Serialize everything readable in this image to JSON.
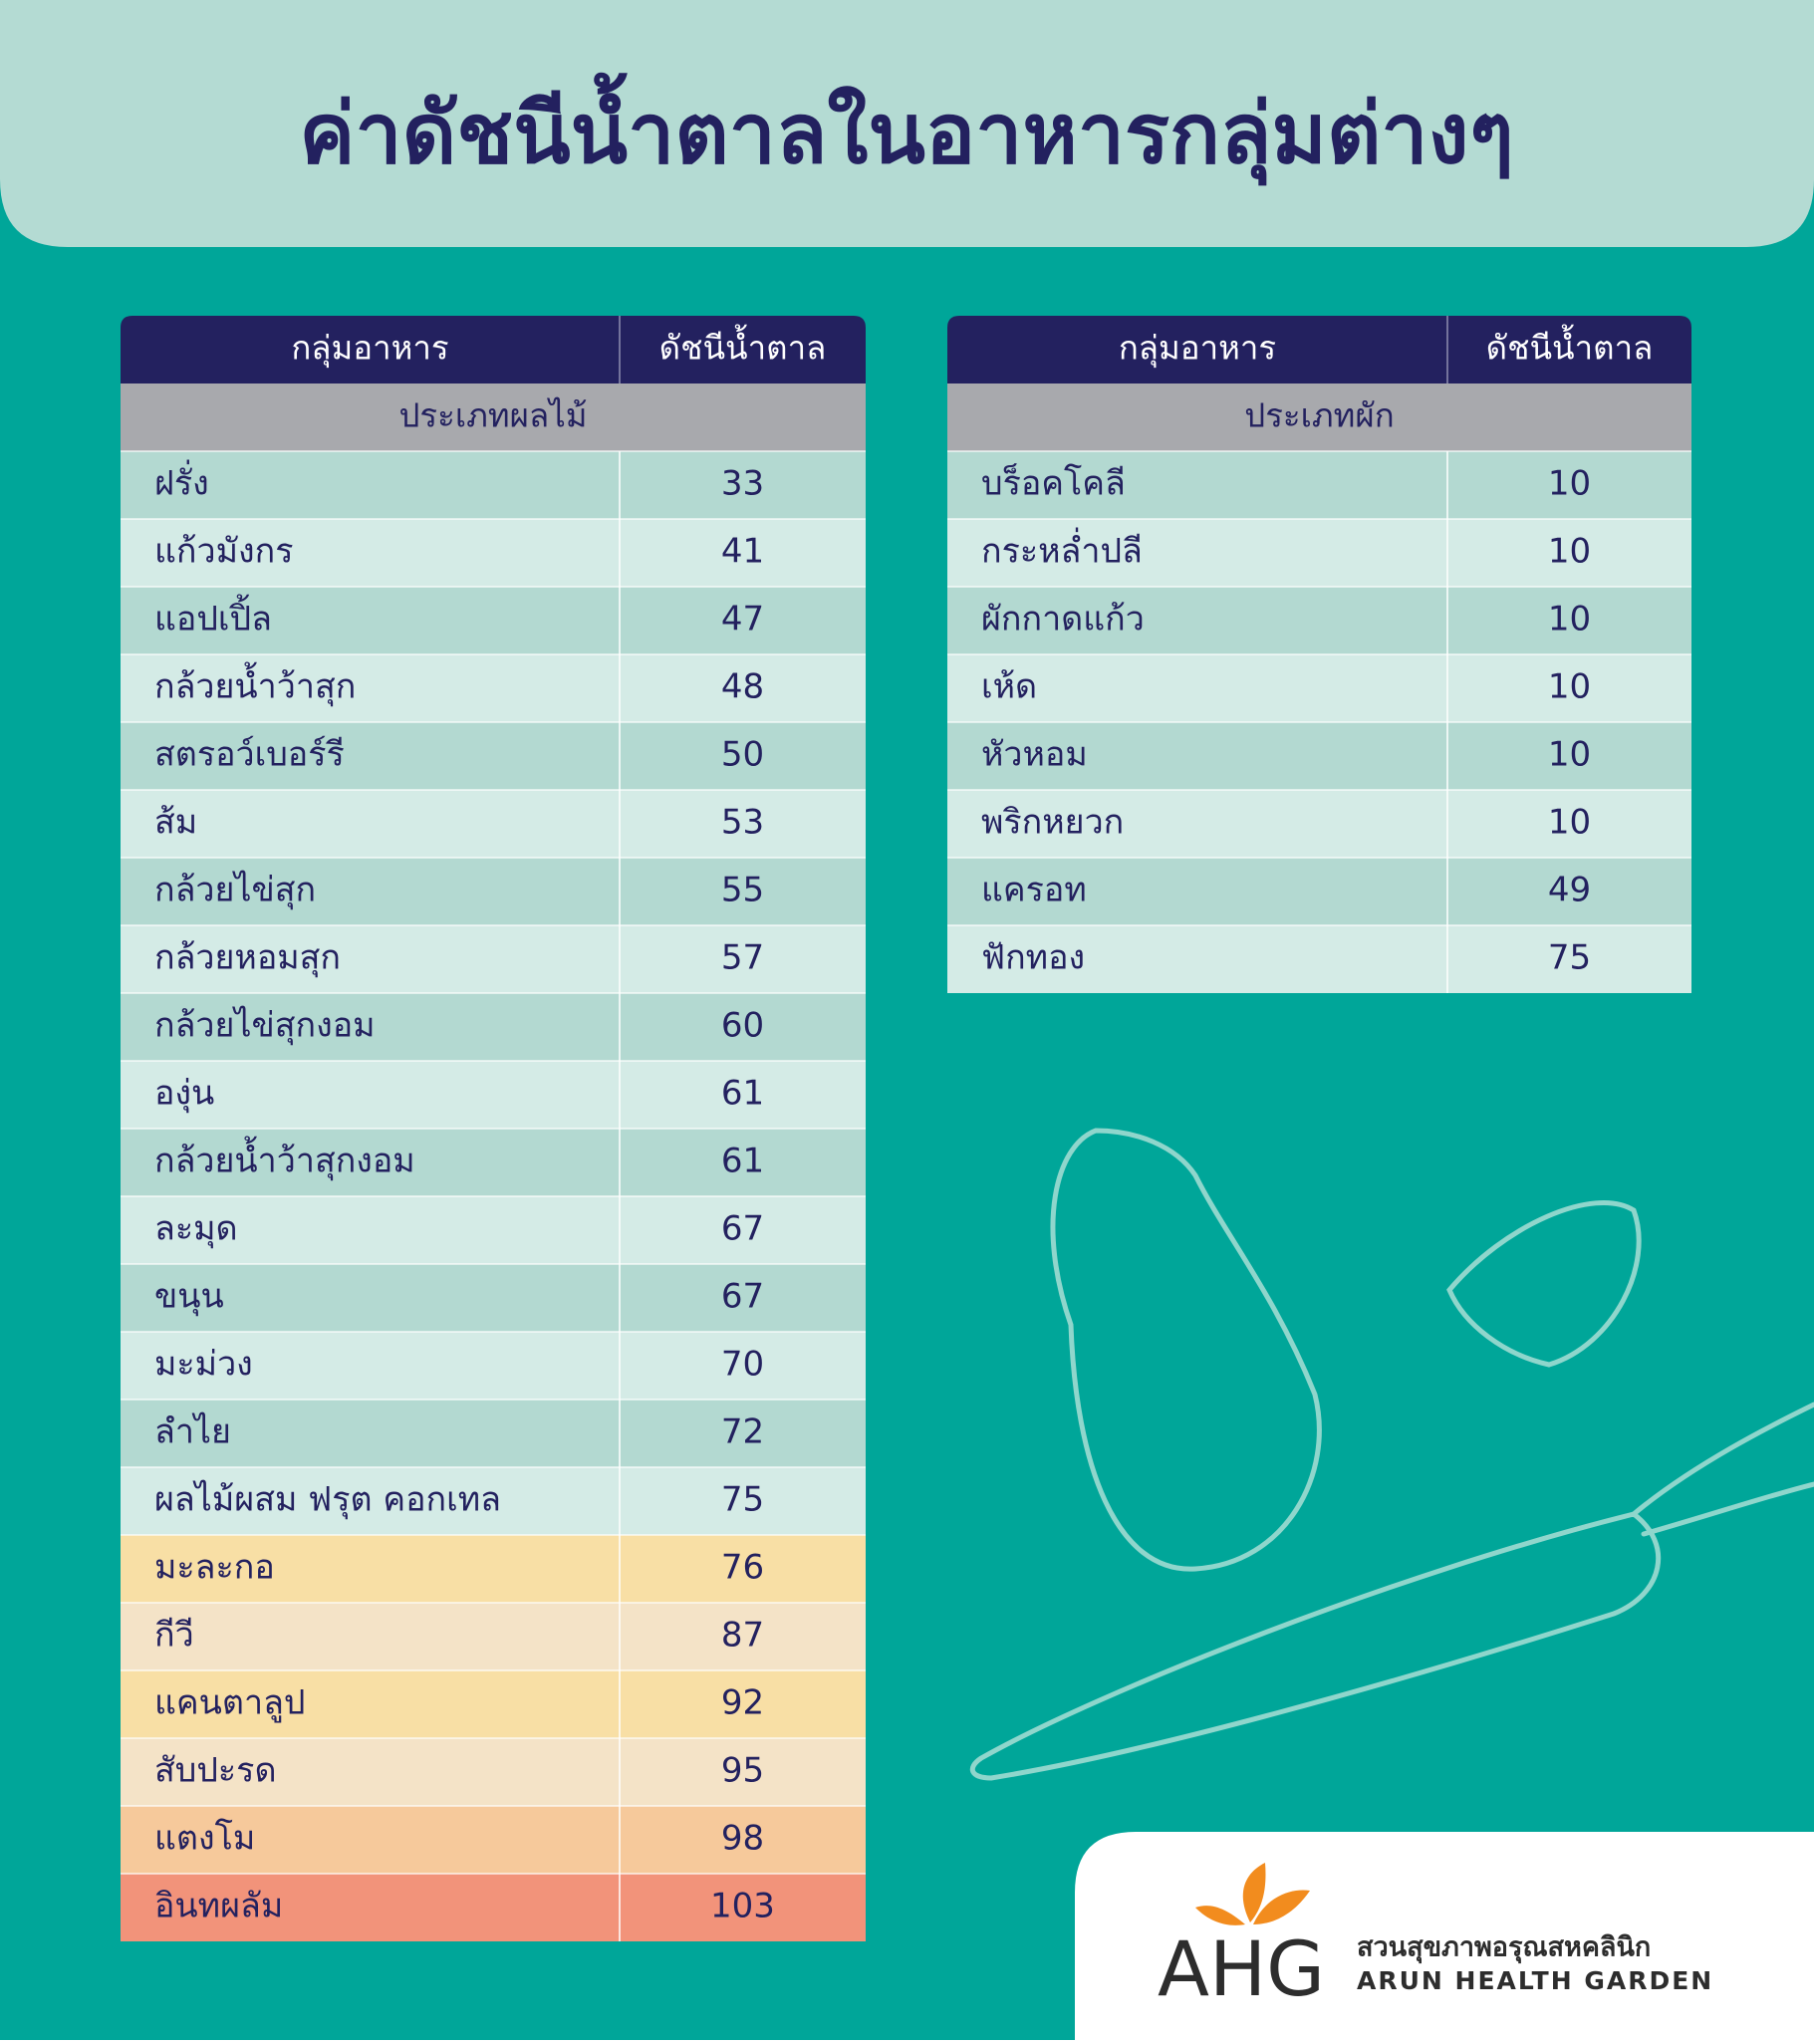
{
  "title": "ค่าดัชนีน้ำตาลในอาหารกลุ่มต่างๆ",
  "tables": [
    {
      "headers": [
        "กลุ่มอาหาร",
        "ดัชนีน้ำตาล"
      ],
      "section": "ประเภทผลไม้",
      "rows": [
        {
          "food": "ฝรั่ง",
          "gi": 33
        },
        {
          "food": "แก้วมังกร",
          "gi": 41
        },
        {
          "food": "แอปเปิ้ล",
          "gi": 47
        },
        {
          "food": "กล้วยน้ำว้าสุก",
          "gi": 48
        },
        {
          "food": "สตรอว์เบอร์รี",
          "gi": 50
        },
        {
          "food": "ส้ม",
          "gi": 53
        },
        {
          "food": "กล้วยไข่สุก",
          "gi": 55
        },
        {
          "food": "กล้วยหอมสุก",
          "gi": 57
        },
        {
          "food": "กล้วยไข่สุกงอม",
          "gi": 60
        },
        {
          "food": "องุ่น",
          "gi": 61
        },
        {
          "food": "กล้วยน้ำว้าสุกงอม",
          "gi": 61
        },
        {
          "food": "ละมุด",
          "gi": 67
        },
        {
          "food": "ขนุน",
          "gi": 67
        },
        {
          "food": "มะม่วง",
          "gi": 70
        },
        {
          "food": "ลำไย",
          "gi": 72
        },
        {
          "food": "ผลไม้ผสม ฟรุต คอกเทล",
          "gi": 75
        },
        {
          "food": "มะละกอ",
          "gi": 76,
          "color": "#f8dfa5"
        },
        {
          "food": "กีวี",
          "gi": 87,
          "color": "#f4e3c7"
        },
        {
          "food": "แคนตาลูป",
          "gi": 92,
          "color": "#f8dfa5"
        },
        {
          "food": "สับปะรด",
          "gi": 95,
          "color": "#f4e3c7"
        },
        {
          "food": "แตงโม",
          "gi": 98,
          "color": "#f6c99b"
        },
        {
          "food": "อินทผลัม",
          "gi": 103,
          "color": "#f2937a"
        }
      ]
    },
    {
      "headers": [
        "กลุ่มอาหาร",
        "ดัชนีน้ำตาล"
      ],
      "section": "ประเภทผัก",
      "rows": [
        {
          "food": "บร็อคโคลี",
          "gi": 10
        },
        {
          "food": "กระหล่ำปลี",
          "gi": 10
        },
        {
          "food": "ผักกาดแก้ว",
          "gi": 10
        },
        {
          "food": "เห้ด",
          "gi": 10
        },
        {
          "food": "หัวหอม",
          "gi": 10
        },
        {
          "food": "พริกหยวก",
          "gi": 10
        },
        {
          "food": "แครอท",
          "gi": 49
        },
        {
          "food": "ฟักทอง",
          "gi": 75
        }
      ]
    }
  ],
  "logo": {
    "mark": "AHG",
    "thai": "สวนสุขภาพอรุณสหคลินิก",
    "english": "ARUN HEALTH GARDEN"
  }
}
